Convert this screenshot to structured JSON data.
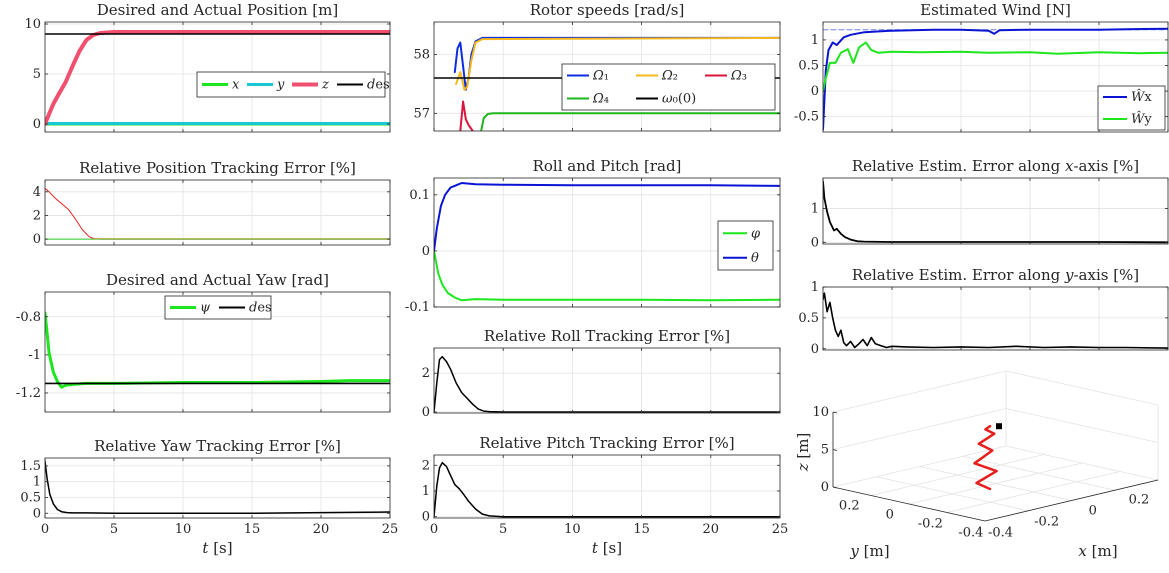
{
  "chart_data": [
    {
      "id": "pos",
      "type": "line",
      "title": "Desired and Actual Position [m]",
      "xlim": [
        0,
        25
      ],
      "ylim": [
        -0.8,
        10.2
      ],
      "yticks": [
        0,
        5,
        10
      ],
      "ytick_labels": [
        "0",
        "5",
        "10"
      ],
      "xticks": [
        0,
        5,
        10,
        15,
        20,
        25
      ],
      "show_xticklabels": false,
      "grid": true,
      "legend": {
        "placement": "right",
        "layout": "row"
      },
      "series": [
        {
          "name": "x",
          "color": "#1ee61e",
          "width": 3,
          "x": [
            0,
            25
          ],
          "y": [
            0,
            0
          ]
        },
        {
          "name": "y",
          "color": "#18c8d2",
          "width": 3,
          "x": [
            0,
            25
          ],
          "y": [
            0.05,
            0.05
          ]
        },
        {
          "name": "z",
          "color": "#f0506e",
          "width": 4,
          "x": [
            0,
            0.3,
            0.6,
            1,
            1.5,
            2,
            2.5,
            3,
            3.5,
            4,
            5,
            6,
            8,
            25
          ],
          "y": [
            0,
            1,
            2,
            3,
            4.2,
            5.8,
            7.3,
            8.4,
            8.9,
            9.1,
            9.2,
            9.2,
            9.2,
            9.2
          ]
        },
        {
          "name": "des",
          "color": "#000000",
          "width": 1.6,
          "x": [
            0,
            25
          ],
          "y": [
            9,
            9
          ]
        }
      ]
    },
    {
      "id": "poserr",
      "type": "line",
      "title": "Relative Position Tracking Error [%]",
      "xlim": [
        0,
        25
      ],
      "ylim": [
        -0.5,
        5
      ],
      "yticks": [
        0,
        2,
        4
      ],
      "ytick_labels": [
        "0",
        "2",
        "4"
      ],
      "xticks": [
        0,
        5,
        10,
        15,
        20,
        25
      ],
      "show_xticklabels": false,
      "grid": true,
      "series": [
        {
          "color": "#e61e1e",
          "width": 1,
          "x": [
            0,
            0.3,
            0.7,
            1.2,
            1.7,
            2.2,
            2.7,
            3.2,
            3.5,
            4,
            25
          ],
          "y": [
            4.3,
            4,
            3.5,
            3,
            2.5,
            1.7,
            0.8,
            0.2,
            0.05,
            0,
            0
          ]
        },
        {
          "color": "#28c828",
          "width": 1,
          "x": [
            0,
            25
          ],
          "y": [
            0,
            0
          ]
        },
        {
          "color": "#a0a028",
          "width": 1,
          "x": [
            3.5,
            25
          ],
          "y": [
            0.03,
            0.03
          ]
        }
      ]
    },
    {
      "id": "yaw",
      "type": "line",
      "title": "Desired and Actual Yaw [rad]",
      "xlim": [
        0,
        25
      ],
      "ylim": [
        -1.3,
        -0.67
      ],
      "yticks": [
        -1.2,
        -1,
        -0.8
      ],
      "ytick_labels": [
        "-1.2",
        "-1",
        "-0.8"
      ],
      "xticks": [
        0,
        5,
        10,
        15,
        20,
        25
      ],
      "show_xticklabels": false,
      "grid": true,
      "legend": {
        "placement": "top-center",
        "layout": "row"
      },
      "series": [
        {
          "name": "ψ",
          "color": "#1ee61e",
          "width": 3,
          "x": [
            0,
            0.1,
            0.3,
            0.6,
            0.9,
            1.2,
            1.5,
            2,
            3,
            5,
            10,
            15,
            20,
            22,
            25
          ],
          "y": [
            -0.78,
            -0.85,
            -0.99,
            -1.09,
            -1.14,
            -1.17,
            -1.16,
            -1.155,
            -1.15,
            -1.15,
            -1.145,
            -1.145,
            -1.14,
            -1.135,
            -1.135
          ]
        },
        {
          "name": "des",
          "color": "#000000",
          "width": 1.6,
          "x": [
            0,
            25
          ],
          "y": [
            -1.15,
            -1.15
          ]
        }
      ]
    },
    {
      "id": "yawerr",
      "type": "line",
      "title": "Relative Yaw Tracking Error [%]",
      "xlim": [
        0,
        25
      ],
      "ylim": [
        -0.15,
        1.75
      ],
      "yticks": [
        0,
        0.5,
        1,
        1.5
      ],
      "ytick_labels": [
        "0",
        "0.5",
        "1",
        "1.5"
      ],
      "xticks": [
        0,
        5,
        10,
        15,
        20,
        25
      ],
      "xtick_labels": [
        "0",
        "5",
        "10",
        "15",
        "20",
        "25"
      ],
      "show_xticklabels": true,
      "xlabel_var": "t",
      "xlabel_unit": " [s]",
      "grid": true,
      "series": [
        {
          "color": "#000000",
          "width": 1.5,
          "x": [
            0,
            0.15,
            0.35,
            0.6,
            0.9,
            1.2,
            1.6,
            2,
            3,
            5,
            10,
            15,
            20,
            25
          ],
          "y": [
            1.65,
            1.1,
            0.6,
            0.3,
            0.12,
            0.05,
            0.02,
            0.01,
            0.01,
            0,
            0,
            0,
            0.02,
            0.04
          ]
        }
      ]
    },
    {
      "id": "rotor",
      "type": "line",
      "title": "Rotor speeds [rad/s]",
      "xlim": [
        0,
        25
      ],
      "ylim": [
        56.7,
        58.55
      ],
      "yticks": [
        57,
        58
      ],
      "ytick_labels": [
        "57",
        "58"
      ],
      "xticks": [
        0,
        5,
        10,
        15,
        20,
        25
      ],
      "show_xticklabels": false,
      "grid": true,
      "legend": {
        "placement": "right",
        "layout": "grid-3"
      },
      "series": [
        {
          "name": "Ω₁",
          "color": "#0b2de0",
          "width": 2,
          "x": [
            1.5,
            1.7,
            1.9,
            2.1,
            2.3,
            2.5,
            2.7,
            3,
            3.5,
            25
          ],
          "y": [
            57.7,
            58.1,
            58.2,
            57.8,
            57.4,
            57.6,
            58.0,
            58.22,
            58.28,
            58.28
          ]
        },
        {
          "name": "Ω₂",
          "color": "#f5b91e",
          "width": 2,
          "x": [
            1.6,
            1.9,
            2.2,
            2.4,
            2.7,
            3,
            3.5,
            25
          ],
          "y": [
            57.5,
            57.7,
            57.4,
            57.45,
            57.9,
            58.2,
            58.26,
            58.28
          ]
        },
        {
          "name": "Ω₃",
          "color": "#dc143c",
          "width": 2,
          "x": [
            1.9,
            2.1,
            2.3,
            2.5,
            2.8
          ],
          "y": [
            56.7,
            57.2,
            56.9,
            56.8,
            56.7
          ]
        },
        {
          "name": "Ω₄",
          "color": "#1eb41e",
          "width": 2,
          "x": [
            3.4,
            3.6,
            3.9,
            4.3,
            5,
            25
          ],
          "y": [
            56.7,
            56.92,
            56.99,
            57.0,
            57.0,
            57.0
          ]
        },
        {
          "name": "ω₀(0)",
          "color": "#000000",
          "width": 1.6,
          "x": [
            0,
            25
          ],
          "y": [
            57.6,
            57.6
          ]
        }
      ]
    },
    {
      "id": "rollpitch",
      "type": "line",
      "title": "Roll and Pitch [rad]",
      "xlim": [
        0,
        25
      ],
      "ylim": [
        -0.1,
        0.13
      ],
      "yticks": [
        -0.1,
        0,
        0.1
      ],
      "ytick_labels": [
        "-0.1",
        "0",
        "0.1"
      ],
      "xticks": [
        0,
        5,
        10,
        15,
        20,
        25
      ],
      "show_xticklabels": false,
      "grid": true,
      "legend": {
        "placement": "right",
        "layout": "column"
      },
      "series": [
        {
          "name": "φ",
          "color": "#1ee61e",
          "width": 2,
          "x": [
            0,
            0.3,
            0.6,
            1,
            1.5,
            2,
            3,
            5,
            10,
            15,
            20,
            25
          ],
          "y": [
            0,
            -0.04,
            -0.06,
            -0.075,
            -0.083,
            -0.088,
            -0.086,
            -0.087,
            -0.087,
            -0.087,
            -0.088,
            -0.087
          ]
        },
        {
          "name": "θ",
          "color": "#0a14d2",
          "width": 2,
          "x": [
            0,
            0.2,
            0.5,
            0.8,
            1.2,
            1.6,
            2,
            3,
            5,
            10,
            15,
            20,
            25
          ],
          "y": [
            0,
            0.04,
            0.08,
            0.1,
            0.113,
            0.117,
            0.121,
            0.119,
            0.118,
            0.117,
            0.117,
            0.117,
            0.116
          ]
        }
      ]
    },
    {
      "id": "rollerr",
      "type": "line",
      "title": "Relative Roll Tracking Error [%]",
      "xlim": [
        0,
        25
      ],
      "ylim": [
        -0.05,
        3.3
      ],
      "yticks": [
        0,
        2
      ],
      "ytick_labels": [
        "0",
        "2"
      ],
      "xticks": [
        0,
        5,
        10,
        15,
        20,
        25
      ],
      "show_xticklabels": false,
      "grid": true,
      "series": [
        {
          "color": "#000000",
          "width": 1.5,
          "x": [
            0,
            0.2,
            0.4,
            0.6,
            0.9,
            1.2,
            1.6,
            2,
            2.4,
            2.8,
            3.2,
            3.6,
            4,
            5,
            10,
            15,
            20,
            25
          ],
          "y": [
            0,
            1.5,
            2.7,
            2.85,
            2.6,
            2.2,
            1.5,
            1.0,
            0.7,
            0.4,
            0.15,
            0.05,
            0.02,
            0,
            0,
            0,
            0,
            0
          ]
        }
      ]
    },
    {
      "id": "pitcherr",
      "type": "line",
      "title": "Relative Pitch Tracking Error [%]",
      "xlim": [
        0,
        25
      ],
      "ylim": [
        -0.05,
        2.4
      ],
      "yticks": [
        0,
        1,
        2
      ],
      "ytick_labels": [
        "0",
        "1",
        "2"
      ],
      "xticks": [
        0,
        5,
        10,
        15,
        20,
        25
      ],
      "xtick_labels": [
        "0",
        "5",
        "10",
        "15",
        "20",
        "25"
      ],
      "show_xticklabels": true,
      "xlabel_var": "t",
      "xlabel_unit": " [s]",
      "grid": true,
      "series": [
        {
          "color": "#000000",
          "width": 1.5,
          "x": [
            0,
            0.2,
            0.4,
            0.6,
            0.9,
            1.2,
            1.5,
            1.8,
            2.1,
            2.5,
            3,
            3.5,
            4,
            5,
            10,
            15,
            20,
            25
          ],
          "y": [
            0,
            1.2,
            1.9,
            2.1,
            1.95,
            1.6,
            1.25,
            1.1,
            0.9,
            0.6,
            0.3,
            0.1,
            0.03,
            0,
            0,
            0,
            0,
            0
          ]
        }
      ]
    },
    {
      "id": "wind",
      "type": "line",
      "title": "Estimated Wind [N]",
      "xlim": [
        0,
        25
      ],
      "ylim": [
        -0.8,
        1.35
      ],
      "yticks": [
        -0.5,
        0,
        0.5,
        1
      ],
      "ytick_labels": [
        "-0.5",
        "0",
        "0.5",
        "1"
      ],
      "xticks": [
        0,
        5,
        10,
        15,
        20,
        25
      ],
      "show_xticklabels": false,
      "grid": true,
      "legend": {
        "placement": "bottom-right",
        "layout": "column"
      },
      "series": [
        {
          "color": "#7080e0",
          "width": 1,
          "dash": "5,3",
          "x": [
            0,
            25
          ],
          "y": [
            1.2,
            1.2
          ]
        },
        {
          "name": "Ŵx",
          "color": "#0a14d2",
          "width": 2,
          "x": [
            0,
            0.2,
            0.4,
            0.7,
            1,
            1.5,
            2,
            3,
            5,
            8,
            10,
            12,
            12.4,
            12.8,
            15,
            18,
            20,
            22,
            25
          ],
          "y": [
            -0.75,
            0.4,
            0.8,
            0.95,
            0.9,
            1.05,
            1.1,
            1.15,
            1.18,
            1.2,
            1.2,
            1.18,
            1.12,
            1.19,
            1.2,
            1.2,
            1.2,
            1.21,
            1.22
          ]
        },
        {
          "name": "Ŵy",
          "color": "#1ee61e",
          "width": 2,
          "x": [
            0,
            0.2,
            0.5,
            0.9,
            1.3,
            1.8,
            2.2,
            2.6,
            3.1,
            3.5,
            4,
            5,
            7,
            10,
            12,
            15,
            17,
            20,
            23,
            25
          ],
          "y": [
            0,
            0.25,
            0.55,
            0.55,
            0.75,
            0.82,
            0.55,
            0.85,
            0.95,
            0.8,
            0.75,
            0.77,
            0.76,
            0.77,
            0.75,
            0.76,
            0.73,
            0.76,
            0.74,
            0.75
          ]
        }
      ]
    },
    {
      "id": "errx",
      "type": "line",
      "title": "Relative Estim. Error along ",
      "title_var": "x",
      "title_tail": "-axis [%]",
      "xlim": [
        0,
        25
      ],
      "ylim": [
        -0.05,
        1.9
      ],
      "yticks": [
        0,
        1
      ],
      "ytick_labels": [
        "0",
        "1"
      ],
      "xticks": [
        0,
        5,
        10,
        15,
        20,
        25
      ],
      "show_xticklabels": false,
      "grid": true,
      "series": [
        {
          "color": "#000000",
          "width": 1.8,
          "x": [
            0,
            0.1,
            0.3,
            0.5,
            0.8,
            1,
            1.3,
            1.6,
            2,
            2.5,
            3,
            5,
            10,
            15,
            20,
            25
          ],
          "y": [
            1.8,
            1.3,
            0.9,
            0.6,
            0.35,
            0.4,
            0.25,
            0.15,
            0.08,
            0.03,
            0.02,
            0.01,
            0.01,
            0.01,
            0.01,
            0
          ]
        }
      ]
    },
    {
      "id": "erry",
      "type": "line",
      "title": "Relative Estim. Error along ",
      "title_var": "y",
      "title_tail": "-axis [%]",
      "xlim": [
        0,
        25
      ],
      "ylim": [
        -0.02,
        1.0
      ],
      "yticks": [
        0,
        0.5,
        1
      ],
      "ytick_labels": [
        "0",
        "0.5",
        "1"
      ],
      "xticks": [
        0,
        5,
        10,
        15,
        20,
        25
      ],
      "show_xticklabels": false,
      "grid": true,
      "series": [
        {
          "color": "#000000",
          "width": 1.6,
          "x": [
            0,
            0.1,
            0.3,
            0.5,
            0.7,
            0.9,
            1.1,
            1.3,
            1.5,
            1.7,
            2,
            2.3,
            2.6,
            2.9,
            3.2,
            3.5,
            3.8,
            4.2,
            4.6,
            5,
            6,
            8,
            10,
            12,
            14,
            16,
            18,
            20,
            22,
            25
          ],
          "y": [
            0.8,
            0.9,
            0.6,
            0.75,
            0.5,
            0.3,
            0.2,
            0.3,
            0.1,
            0.05,
            0.12,
            0.02,
            0.08,
            0.15,
            0.05,
            0.18,
            0.08,
            0.05,
            0.02,
            0.04,
            0.03,
            0.02,
            0.03,
            0.02,
            0.04,
            0.02,
            0.03,
            0.02,
            0.02,
            0.01
          ]
        }
      ]
    },
    {
      "id": "traj3d",
      "type": "line3d",
      "zlim": [
        0,
        10
      ],
      "zticks": [
        0,
        5,
        10
      ],
      "ztick_labels": [
        "0",
        "5",
        "10"
      ],
      "yticks": [
        0.2,
        0,
        -0.2,
        -0.4
      ],
      "ytick_labels": [
        "0.2",
        "0",
        "-0.2",
        "-0.4"
      ],
      "xticks": [
        -0.4,
        -0.2,
        0,
        0.2
      ],
      "xtick_labels": [
        "-0.4",
        "-0.2",
        "0",
        "0.2"
      ],
      "zlabel_var": "z",
      "ylabel_var": "y",
      "xlabel_var": "x",
      "axis_unit": " [m]",
      "series": [
        {
          "color": "#e61e1e",
          "width": 2.5,
          "x": [
            0,
            -0.05,
            0.02,
            -0.05,
            0.01,
            -0.04,
            0.01,
            -0.02,
            0
          ],
          "y": [
            0,
            0.01,
            -0.01,
            0.02,
            0,
            0.01,
            -0.01,
            0,
            0
          ],
          "z": [
            0,
            1.2,
            2.5,
            4,
            5.5,
            6.8,
            8,
            8.8,
            9.1
          ]
        }
      ],
      "markers": [
        {
          "color": "#000000",
          "x": 0,
          "y": 0,
          "z": 9.1
        }
      ]
    }
  ]
}
